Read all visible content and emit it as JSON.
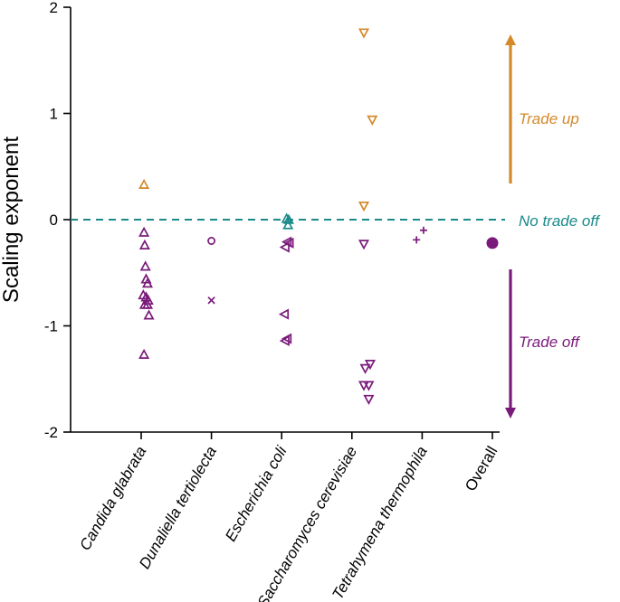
{
  "chart_data": {
    "type": "scatter",
    "title": "",
    "xlabel": "",
    "ylabel": "Scaling exponent",
    "ylim": [
      -2,
      2
    ],
    "yticks": [
      "2",
      "1",
      "0",
      "-1",
      "-2"
    ],
    "categories": [
      "Candida glabrata",
      "Dunaliella tertiolecta",
      "Escherichia coli",
      "Saccharomyces cerevisiae",
      "Tetrahymena thermophila",
      "Overall"
    ],
    "reference_line": {
      "y": 0,
      "label": "No trade off",
      "color": "#1a8a8a",
      "style": "dashed"
    },
    "annotations": [
      {
        "label": "Trade up",
        "direction": "up",
        "color": "#d4892a"
      },
      {
        "label": "Trade off",
        "direction": "down",
        "color": "#7a1a7a"
      }
    ],
    "colors": {
      "purple": "#7a1a7a",
      "orange": "#d4892a",
      "teal": "#1a8a8a",
      "axis": "#000000"
    },
    "series": [
      {
        "name": "Candida glabrata",
        "marker": "triangle-up",
        "points": [
          {
            "dx": 0.04,
            "y": 0.33,
            "color": "orange"
          },
          {
            "dx": 0.04,
            "y": -0.12,
            "color": "purple"
          },
          {
            "dx": 0.05,
            "y": -0.24,
            "color": "purple"
          },
          {
            "dx": 0.06,
            "y": -0.44,
            "color": "purple"
          },
          {
            "dx": 0.07,
            "y": -0.56,
            "color": "purple"
          },
          {
            "dx": 0.09,
            "y": -0.6,
            "color": "purple"
          },
          {
            "dx": 0.03,
            "y": -0.71,
            "color": "purple"
          },
          {
            "dx": 0.07,
            "y": -0.73,
            "color": "purple"
          },
          {
            "dx": 0.1,
            "y": -0.76,
            "color": "purple"
          },
          {
            "dx": 0.05,
            "y": -0.8,
            "color": "purple"
          },
          {
            "dx": 0.09,
            "y": -0.8,
            "color": "purple"
          },
          {
            "dx": 0.11,
            "y": -0.9,
            "color": "purple"
          },
          {
            "dx": 0.04,
            "y": -1.27,
            "color": "purple"
          }
        ]
      },
      {
        "name": "Dunaliella tertiolecta",
        "marker": "mixed",
        "points": [
          {
            "dx": 0.0,
            "y": -0.2,
            "color": "purple",
            "marker": "circle"
          },
          {
            "dx": 0.0,
            "y": -0.76,
            "color": "purple",
            "marker": "x"
          }
        ]
      },
      {
        "name": "Escherichia coli",
        "marker": "mixed",
        "points": [
          {
            "dx": 0.07,
            "y": 0.01,
            "color": "teal",
            "marker": "triangle-up"
          },
          {
            "dx": 0.1,
            "y": 0.0,
            "color": "teal",
            "marker": "triangle-up"
          },
          {
            "dx": 0.09,
            "y": -0.05,
            "color": "teal",
            "marker": "triangle-up"
          },
          {
            "dx": 0.08,
            "y": -0.21,
            "color": "purple",
            "marker": "triangle-left"
          },
          {
            "dx": 0.11,
            "y": -0.22,
            "color": "purple",
            "marker": "triangle-left"
          },
          {
            "dx": 0.05,
            "y": -0.26,
            "color": "purple",
            "marker": "triangle-left"
          },
          {
            "dx": 0.04,
            "y": -0.89,
            "color": "purple",
            "marker": "triangle-left"
          },
          {
            "dx": 0.08,
            "y": -1.12,
            "color": "purple",
            "marker": "triangle-left"
          },
          {
            "dx": 0.05,
            "y": -1.14,
            "color": "purple",
            "marker": "triangle-left"
          }
        ]
      },
      {
        "name": "Saccharomyces cerevisiae",
        "marker": "triangle-down",
        "points": [
          {
            "dx": 0.17,
            "y": 1.76,
            "color": "orange"
          },
          {
            "dx": 0.29,
            "y": 0.94,
            "color": "orange"
          },
          {
            "dx": 0.17,
            "y": 0.13,
            "color": "orange"
          },
          {
            "dx": 0.17,
            "y": -0.23,
            "color": "purple"
          },
          {
            "dx": 0.26,
            "y": -1.36,
            "color": "purple"
          },
          {
            "dx": 0.19,
            "y": -1.4,
            "color": "purple"
          },
          {
            "dx": 0.17,
            "y": -1.56,
            "color": "purple"
          },
          {
            "dx": 0.24,
            "y": -1.56,
            "color": "purple"
          },
          {
            "dx": 0.24,
            "y": -1.69,
            "color": "purple"
          }
        ]
      },
      {
        "name": "Tetrahymena thermophila",
        "marker": "plus",
        "points": [
          {
            "dx": -0.08,
            "y": -0.19,
            "color": "purple"
          },
          {
            "dx": 0.02,
            "y": -0.1,
            "color": "purple"
          }
        ]
      },
      {
        "name": "Overall",
        "marker": "filled-circle",
        "points": [
          {
            "dx": 0.0,
            "y": -0.22,
            "color": "purple"
          }
        ]
      }
    ]
  }
}
